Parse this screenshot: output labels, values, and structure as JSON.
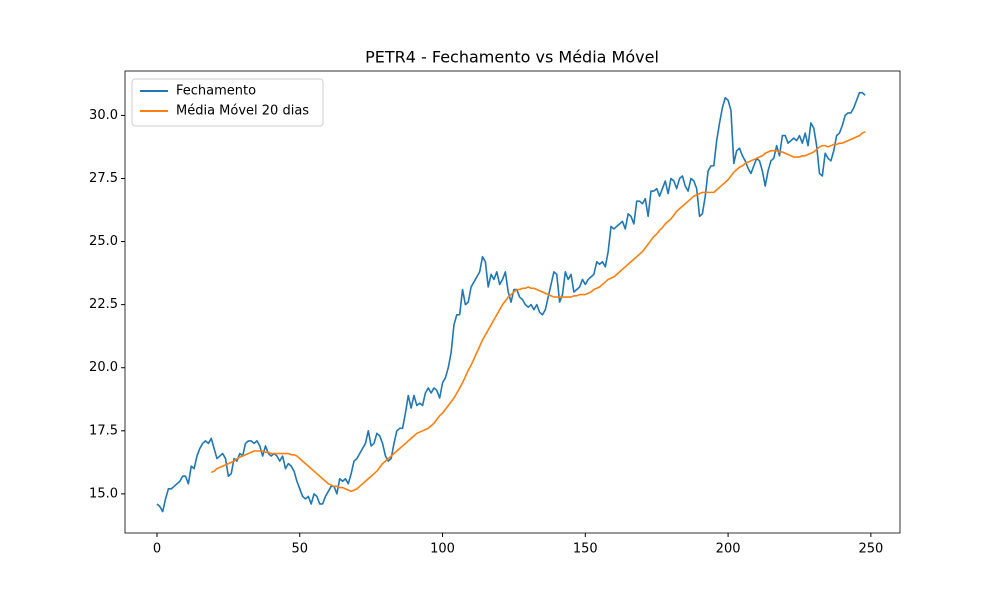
{
  "chart_data": {
    "type": "line",
    "title": "PETR4 - Fechamento vs Média Móvel",
    "x": [
      0,
      1,
      2,
      3,
      4,
      5,
      6,
      7,
      8,
      9,
      10,
      11,
      12,
      13,
      14,
      15,
      16,
      17,
      18,
      19,
      20,
      21,
      22,
      23,
      24,
      25,
      26,
      27,
      28,
      29,
      30,
      31,
      32,
      33,
      34,
      35,
      36,
      37,
      38,
      39,
      40,
      41,
      42,
      43,
      44,
      45,
      46,
      47,
      48,
      49,
      50,
      51,
      52,
      53,
      54,
      55,
      56,
      57,
      58,
      59,
      60,
      61,
      62,
      63,
      64,
      65,
      66,
      67,
      68,
      69,
      70,
      71,
      72,
      73,
      74,
      75,
      76,
      77,
      78,
      79,
      80,
      81,
      82,
      83,
      84,
      85,
      86,
      87,
      88,
      89,
      90,
      91,
      92,
      93,
      94,
      95,
      96,
      97,
      98,
      99,
      100,
      101,
      102,
      103,
      104,
      105,
      106,
      107,
      108,
      109,
      110,
      111,
      112,
      113,
      114,
      115,
      116,
      117,
      118,
      119,
      120,
      121,
      122,
      123,
      124,
      125,
      126,
      127,
      128,
      129,
      130,
      131,
      132,
      133,
      134,
      135,
      136,
      137,
      138,
      139,
      140,
      141,
      142,
      143,
      144,
      145,
      146,
      147,
      148,
      149,
      150,
      151,
      152,
      153,
      154,
      155,
      156,
      157,
      158,
      159,
      160,
      161,
      162,
      163,
      164,
      165,
      166,
      167,
      168,
      169,
      170,
      171,
      172,
      173,
      174,
      175,
      176,
      177,
      178,
      179,
      180,
      181,
      182,
      183,
      184,
      185,
      186,
      187,
      188,
      189,
      190,
      191,
      192,
      193,
      194,
      195,
      196,
      197,
      198,
      199,
      200,
      201,
      202,
      203,
      204,
      205,
      206,
      207,
      208,
      209,
      210,
      211,
      212,
      213,
      214,
      215,
      216,
      217,
      218,
      219,
      220,
      221,
      222,
      223,
      224,
      225,
      226,
      227,
      228,
      229,
      230,
      231,
      232,
      233,
      234,
      235,
      236,
      237,
      238,
      239,
      240,
      241,
      242,
      243,
      244,
      245,
      246,
      247,
      248
    ],
    "series": [
      {
        "name": "Fechamento",
        "color": "#1f77b4",
        "values": [
          14.6,
          14.5,
          14.3,
          14.8,
          15.2,
          15.2,
          15.3,
          15.4,
          15.5,
          15.7,
          15.7,
          15.4,
          16.1,
          16.0,
          16.5,
          16.8,
          17.0,
          17.1,
          17.0,
          17.2,
          16.8,
          16.4,
          16.5,
          16.6,
          16.4,
          15.7,
          15.8,
          16.4,
          16.3,
          16.6,
          16.5,
          17.0,
          17.1,
          17.1,
          17.0,
          17.1,
          16.9,
          16.5,
          16.9,
          16.6,
          16.5,
          16.6,
          16.5,
          16.3,
          16.5,
          16.0,
          16.2,
          16.1,
          15.9,
          15.5,
          15.2,
          14.9,
          14.8,
          14.9,
          14.6,
          15.0,
          14.9,
          14.6,
          14.6,
          14.9,
          15.1,
          15.3,
          15.3,
          15.0,
          15.6,
          15.5,
          15.6,
          15.4,
          15.8,
          16.3,
          16.4,
          16.6,
          16.8,
          17.0,
          17.5,
          16.9,
          17.0,
          17.4,
          17.3,
          17.0,
          16.5,
          16.3,
          16.4,
          17.0,
          17.5,
          17.6,
          17.6,
          18.2,
          18.9,
          18.4,
          18.9,
          18.5,
          18.6,
          18.5,
          19.0,
          19.2,
          19.0,
          19.2,
          19.1,
          18.8,
          19.4,
          19.6,
          20.0,
          20.6,
          21.7,
          22.1,
          22.1,
          23.1,
          22.5,
          22.6,
          23.2,
          23.4,
          23.6,
          23.8,
          24.4,
          24.2,
          23.2,
          23.7,
          23.5,
          23.8,
          23.3,
          23.5,
          23.8,
          23.0,
          22.6,
          23.1,
          23.1,
          22.8,
          22.7,
          22.5,
          22.4,
          22.5,
          22.3,
          22.5,
          22.2,
          22.1,
          22.3,
          22.8,
          23.3,
          23.8,
          23.7,
          22.6,
          22.9,
          23.8,
          23.5,
          23.7,
          23.0,
          23.1,
          23.2,
          23.5,
          23.3,
          23.5,
          23.6,
          23.7,
          24.2,
          24.1,
          24.2,
          24.0,
          24.6,
          25.6,
          25.5,
          25.6,
          25.7,
          25.8,
          25.5,
          26.1,
          26.0,
          25.7,
          26.6,
          26.6,
          26.5,
          26.7,
          26.0,
          27.0,
          27.0,
          27.1,
          26.8,
          27.1,
          27.4,
          26.9,
          27.5,
          27.4,
          27.1,
          27.5,
          27.6,
          27.2,
          27.0,
          27.5,
          27.4,
          27.1,
          26.0,
          26.1,
          26.8,
          27.8,
          28.0,
          28.0,
          29.0,
          29.7,
          30.3,
          30.7,
          30.6,
          30.2,
          28.1,
          28.6,
          28.7,
          28.4,
          28.2,
          27.9,
          27.7,
          28.0,
          28.3,
          28.2,
          27.8,
          27.2,
          27.8,
          28.2,
          28.3,
          28.8,
          28.4,
          29.2,
          29.2,
          28.9,
          29.0,
          29.1,
          29.0,
          29.2,
          28.9,
          29.3,
          28.8,
          29.7,
          29.5,
          28.8,
          27.7,
          27.6,
          28.5,
          28.3,
          28.2,
          28.6,
          29.2,
          29.3,
          29.6,
          30.0,
          30.1,
          30.1,
          30.3,
          30.6,
          30.9,
          30.9,
          30.8
        ]
      },
      {
        "name": "Média Móvel 20 dias",
        "color": "#ff7f0e",
        "values": [
          null,
          null,
          null,
          null,
          null,
          null,
          null,
          null,
          null,
          null,
          null,
          null,
          null,
          null,
          null,
          null,
          null,
          null,
          null,
          15.85,
          15.9,
          16.0,
          16.05,
          16.1,
          16.15,
          16.2,
          16.25,
          16.3,
          16.4,
          16.45,
          16.5,
          16.55,
          16.6,
          16.65,
          16.7,
          16.7,
          16.7,
          16.7,
          16.65,
          16.65,
          16.6,
          16.6,
          16.6,
          16.6,
          16.6,
          16.6,
          16.6,
          16.55,
          16.55,
          16.5,
          16.4,
          16.3,
          16.2,
          16.1,
          16.0,
          15.9,
          15.8,
          15.7,
          15.6,
          15.5,
          15.4,
          15.35,
          15.3,
          15.3,
          15.25,
          15.25,
          15.2,
          15.15,
          15.1,
          15.15,
          15.2,
          15.3,
          15.4,
          15.5,
          15.6,
          15.7,
          15.8,
          15.9,
          16.05,
          16.2,
          16.3,
          16.4,
          16.5,
          16.6,
          16.7,
          16.8,
          16.9,
          17.0,
          17.1,
          17.2,
          17.3,
          17.4,
          17.45,
          17.5,
          17.55,
          17.6,
          17.7,
          17.8,
          17.95,
          18.1,
          18.2,
          18.35,
          18.5,
          18.65,
          18.8,
          19.0,
          19.2,
          19.4,
          19.65,
          19.9,
          20.1,
          20.35,
          20.6,
          20.85,
          21.1,
          21.3,
          21.5,
          21.7,
          21.9,
          22.1,
          22.3,
          22.5,
          22.65,
          22.8,
          22.9,
          23.0,
          23.1,
          23.1,
          23.15,
          23.15,
          23.2,
          23.15,
          23.15,
          23.1,
          23.05,
          23.0,
          22.95,
          22.9,
          22.85,
          22.8,
          22.8,
          22.8,
          22.8,
          22.8,
          22.8,
          22.8,
          22.85,
          22.85,
          22.9,
          22.9,
          22.9,
          22.95,
          23.0,
          23.1,
          23.15,
          23.2,
          23.3,
          23.4,
          23.5,
          23.55,
          23.6,
          23.7,
          23.8,
          23.9,
          24.0,
          24.1,
          24.2,
          24.3,
          24.4,
          24.5,
          24.6,
          24.75,
          24.9,
          25.05,
          25.2,
          25.3,
          25.45,
          25.55,
          25.7,
          25.8,
          25.9,
          26.05,
          26.2,
          26.3,
          26.4,
          26.5,
          26.6,
          26.7,
          26.8,
          26.85,
          26.9,
          26.95,
          26.95,
          26.95,
          26.95,
          26.95,
          27.05,
          27.15,
          27.25,
          27.35,
          27.45,
          27.6,
          27.75,
          27.85,
          27.95,
          28.0,
          28.1,
          28.15,
          28.2,
          28.25,
          28.3,
          28.35,
          28.4,
          28.5,
          28.55,
          28.6,
          28.6,
          28.6,
          28.55,
          28.55,
          28.5,
          28.45,
          28.4,
          28.35,
          28.35,
          28.35,
          28.4,
          28.4,
          28.45,
          28.5,
          28.55,
          28.65,
          28.75,
          28.8,
          28.8,
          28.75,
          28.8,
          28.85,
          28.85,
          28.9,
          28.9,
          28.95,
          29.0,
          29.05,
          29.1,
          29.15,
          29.2,
          29.3,
          29.35
        ]
      }
    ],
    "xlim": [
      -11.2,
      260.2
    ],
    "xticks": [
      0,
      50,
      100,
      150,
      200,
      250
    ],
    "ylim": [
      13.45,
      31.76
    ],
    "yticks": [
      {
        "value": 15,
        "label": "15.0"
      },
      {
        "value": 17.5,
        "label": "17.5"
      },
      {
        "value": 20,
        "label": "20.0"
      },
      {
        "value": 22.5,
        "label": "22.5"
      },
      {
        "value": 25,
        "label": "25.0"
      },
      {
        "value": 27.5,
        "label": "27.5"
      },
      {
        "value": 30,
        "label": "30.0"
      }
    ],
    "legend": "upper left",
    "grid": false
  }
}
